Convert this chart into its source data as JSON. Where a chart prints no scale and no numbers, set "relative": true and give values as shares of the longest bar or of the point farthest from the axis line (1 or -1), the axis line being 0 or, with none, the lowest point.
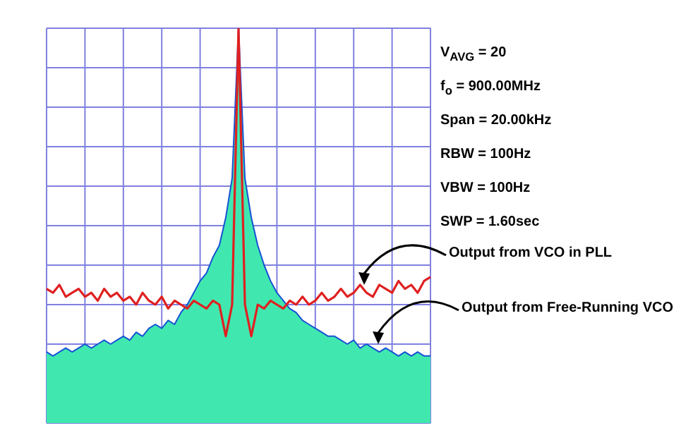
{
  "chart_data": {
    "type": "line",
    "relative": true,
    "grid": true,
    "legend": false,
    "tick_labels": false,
    "categories": [
      null,
      null,
      null,
      null,
      null,
      null,
      null,
      null,
      null,
      null,
      null,
      null,
      null,
      null,
      null,
      null,
      null,
      null,
      null,
      null,
      null,
      null,
      null,
      null,
      null,
      null,
      null,
      null,
      null,
      null,
      null,
      null,
      null,
      null,
      null,
      null,
      null,
      null,
      null,
      null,
      null,
      null,
      null,
      null,
      null,
      null,
      null,
      null,
      null,
      null,
      null,
      null,
      null,
      null,
      null,
      null,
      null,
      null,
      null,
      null,
      null
    ],
    "series": [
      {
        "name": "Output from Free-Running VCO",
        "type": "area",
        "color": "#40e8b0",
        "values": [
          0.18,
          0.17,
          0.18,
          0.19,
          0.18,
          0.19,
          0.2,
          0.19,
          0.2,
          0.21,
          0.2,
          0.21,
          0.22,
          0.21,
          0.23,
          0.22,
          0.24,
          0.25,
          0.24,
          0.26,
          0.25,
          0.28,
          0.3,
          0.33,
          0.36,
          0.38,
          0.42,
          0.45,
          0.52,
          0.62,
          1.0,
          0.62,
          0.52,
          0.45,
          0.4,
          0.36,
          0.33,
          0.31,
          0.29,
          0.28,
          0.26,
          0.25,
          0.24,
          0.23,
          0.22,
          0.22,
          0.21,
          0.2,
          0.21,
          0.19,
          0.2,
          0.19,
          0.18,
          0.19,
          0.18,
          0.17,
          0.18,
          0.17,
          0.18,
          0.17,
          0.17
        ]
      },
      {
        "name": "Output from VCO in PLL",
        "color": "#e02020",
        "values": [
          0.34,
          0.33,
          0.35,
          0.32,
          0.33,
          0.34,
          0.32,
          0.33,
          0.31,
          0.34,
          0.32,
          0.33,
          0.31,
          0.32,
          0.3,
          0.33,
          0.31,
          0.3,
          0.32,
          0.29,
          0.31,
          0.3,
          0.29,
          0.31,
          0.3,
          0.29,
          0.31,
          0.3,
          0.22,
          0.3,
          1.0,
          0.3,
          0.22,
          0.3,
          0.29,
          0.31,
          0.3,
          0.29,
          0.31,
          0.3,
          0.32,
          0.3,
          0.31,
          0.33,
          0.31,
          0.32,
          0.34,
          0.32,
          0.33,
          0.35,
          0.33,
          0.32,
          0.35,
          0.34,
          0.33,
          0.36,
          0.34,
          0.35,
          0.33,
          0.36,
          0.37
        ]
      }
    ],
    "annotations": [
      "V$_{AVG}$ = 20",
      "f$_{o}$ = 900.00MHz",
      "Span = 20.00kHz",
      "RBW = 100Hz",
      "VBW = 100Hz",
      "SWP = 1.60sec"
    ]
  }
}
